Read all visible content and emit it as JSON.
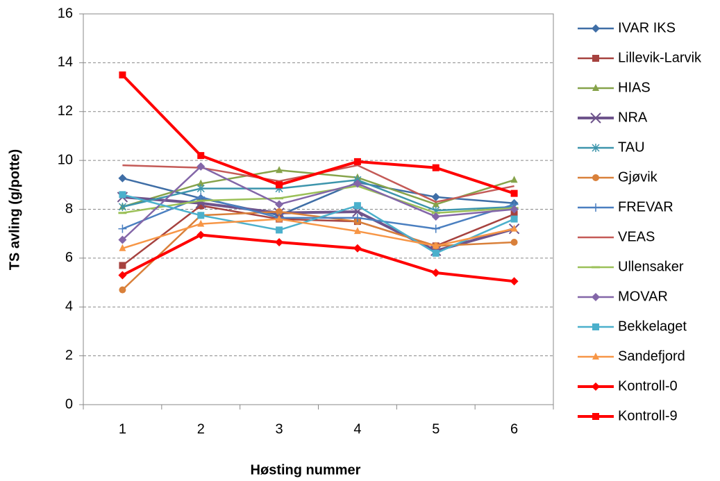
{
  "chart_data": {
    "type": "line",
    "x_label": "Høsting nummer",
    "y_label": "TS avling (g/potte)",
    "categories": [
      "1",
      "2",
      "3",
      "4",
      "5",
      "6"
    ],
    "ylim": [
      0,
      16
    ],
    "yticks": [
      0,
      2,
      4,
      6,
      8,
      10,
      12,
      14,
      16
    ],
    "grid": true,
    "legend": "right",
    "series": [
      {
        "name": "IVAR IKS",
        "color": "#3f6ea6",
        "marker": "diamond",
        "line_width": 2.5,
        "values": [
          9.27,
          8.45,
          7.75,
          9.1,
          8.5,
          8.25
        ]
      },
      {
        "name": "Lillevik-Larvik",
        "color": "#a6423f",
        "marker": "square",
        "line_width": 2.5,
        "values": [
          5.7,
          8.15,
          7.6,
          7.5,
          6.5,
          7.8
        ]
      },
      {
        "name": "HIAS",
        "color": "#86a34a",
        "marker": "triangle",
        "line_width": 2.5,
        "values": [
          8.1,
          9.05,
          9.6,
          9.3,
          8.2,
          9.2
        ]
      },
      {
        "name": "NRA",
        "color": "#6e548c",
        "marker": "x",
        "line_width": 4,
        "values": [
          8.5,
          8.25,
          7.85,
          7.9,
          6.3,
          7.2
        ]
      },
      {
        "name": "TAU",
        "color": "#3d95ac",
        "marker": "asterisk",
        "line_width": 2.5,
        "values": [
          8.1,
          8.85,
          8.85,
          9.2,
          7.95,
          8.1
        ]
      },
      {
        "name": "Gjøvik",
        "color": "#d9803a",
        "marker": "circle",
        "line_width": 2.5,
        "values": [
          4.7,
          7.75,
          7.9,
          7.5,
          6.5,
          6.65
        ]
      },
      {
        "name": "FREVAR",
        "color": "#4a7fc0",
        "marker": "plus",
        "line_width": 2.5,
        "values": [
          7.2,
          8.5,
          7.65,
          7.65,
          7.2,
          8.2
        ]
      },
      {
        "name": "VEAS",
        "color": "#c45a57",
        "marker": "none",
        "line_width": 2.5,
        "values": [
          9.8,
          9.7,
          9.15,
          9.8,
          8.3,
          8.95
        ]
      },
      {
        "name": "Ullensaker",
        "color": "#9bc058",
        "marker": "dash",
        "line_width": 2.5,
        "values": [
          7.85,
          8.35,
          8.45,
          8.95,
          7.85,
          8.05
        ]
      },
      {
        "name": "MOVAR",
        "color": "#8366a8",
        "marker": "diamond",
        "line_width": 2.5,
        "values": [
          6.75,
          9.75,
          8.2,
          9.05,
          7.7,
          8.0
        ]
      },
      {
        "name": "Bekkelaget",
        "color": "#4bb0cc",
        "marker": "square",
        "line_width": 2.5,
        "values": [
          8.6,
          7.75,
          7.15,
          8.15,
          6.2,
          7.6
        ]
      },
      {
        "name": "Sandefjord",
        "color": "#f79646",
        "marker": "triangle",
        "line_width": 2.5,
        "values": [
          6.4,
          7.4,
          7.6,
          7.1,
          6.5,
          7.2
        ]
      },
      {
        "name": "Kontroll-0",
        "color": "#ff0000",
        "marker": "diamond",
        "line_width": 4,
        "values": [
          5.3,
          6.95,
          6.65,
          6.4,
          5.4,
          5.05
        ]
      },
      {
        "name": "Kontroll-9",
        "color": "#ff0000",
        "marker": "square",
        "line_width": 4,
        "values": [
          13.5,
          10.2,
          9.0,
          9.95,
          9.7,
          8.65
        ]
      }
    ]
  }
}
